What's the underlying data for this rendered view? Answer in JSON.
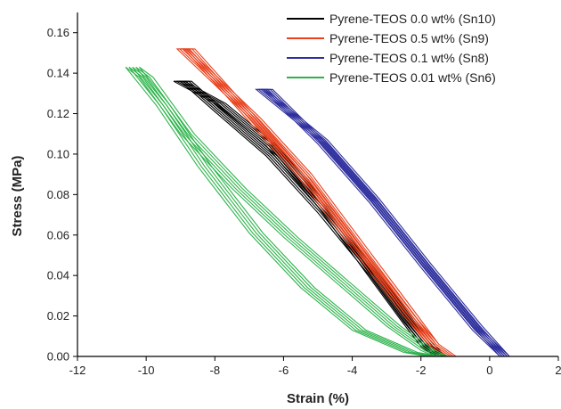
{
  "chart_data": {
    "type": "line",
    "title": "",
    "xlabel": "Strain (%)",
    "ylabel": "Stress (MPa)",
    "xlim": [
      -12,
      2
    ],
    "ylim": [
      0,
      0.17
    ],
    "xticks": [
      -12,
      -10,
      -8,
      -6,
      -4,
      -2,
      0,
      2
    ],
    "yticks": [
      0.0,
      0.02,
      0.04,
      0.06,
      0.08,
      0.1,
      0.12,
      0.14,
      0.16
    ],
    "ytick_labels": [
      "0.00",
      "0.02",
      "0.04",
      "0.06",
      "0.08",
      "0.10",
      "0.12",
      "0.14",
      "0.16"
    ],
    "xtick_labels": [
      "-12",
      "-10",
      "-8",
      "-6",
      "-4",
      "-2",
      "0",
      "2"
    ],
    "grid": false,
    "legend_position": "top-right",
    "series": [
      {
        "name": "Pyrene-TEOS 0.0 wt% (Sn10)",
        "color": "#000000",
        "cycles": 5,
        "cycle_strain_offset": 0.08,
        "loading": [
          [
            -1.6,
            0.0
          ],
          [
            -2.0,
            0.005
          ],
          [
            -2.5,
            0.016
          ],
          [
            -3.5,
            0.039
          ],
          [
            -5.0,
            0.074
          ],
          [
            -6.5,
            0.104
          ],
          [
            -8.0,
            0.125
          ],
          [
            -9.2,
            0.136
          ]
        ],
        "unloading": [
          [
            -9.0,
            0.136
          ],
          [
            -8.0,
            0.121
          ],
          [
            -6.5,
            0.099
          ],
          [
            -5.0,
            0.071
          ],
          [
            -3.5,
            0.04
          ],
          [
            -2.5,
            0.017
          ],
          [
            -2.0,
            0.007
          ],
          [
            -1.6,
            0.0
          ]
        ]
      },
      {
        "name": "Pyrene-TEOS 0.5 wt% (Sn9)",
        "color": "#e8411c",
        "cycles": 5,
        "cycle_strain_offset": 0.08,
        "loading": [
          [
            -1.3,
            0.0
          ],
          [
            -1.8,
            0.006
          ],
          [
            -2.5,
            0.022
          ],
          [
            -4.0,
            0.056
          ],
          [
            -5.5,
            0.09
          ],
          [
            -7.0,
            0.118
          ],
          [
            -9.1,
            0.152
          ]
        ],
        "unloading": [
          [
            -8.9,
            0.152
          ],
          [
            -7.0,
            0.116
          ],
          [
            -5.5,
            0.087
          ],
          [
            -4.0,
            0.053
          ],
          [
            -2.5,
            0.02
          ],
          [
            -1.8,
            0.006
          ],
          [
            -1.3,
            0.0
          ]
        ]
      },
      {
        "name": "Pyrene-TEOS 0.1 wt% (Sn8)",
        "color": "#2e2f9e",
        "cycles": 5,
        "cycle_strain_offset": 0.07,
        "loading": [
          [
            0.3,
            0.0
          ],
          [
            -0.5,
            0.015
          ],
          [
            -2.0,
            0.046
          ],
          [
            -3.5,
            0.078
          ],
          [
            -5.0,
            0.107
          ],
          [
            -6.8,
            0.132
          ]
        ],
        "unloading": [
          [
            -6.6,
            0.132
          ],
          [
            -5.0,
            0.105
          ],
          [
            -3.5,
            0.076
          ],
          [
            -2.0,
            0.044
          ],
          [
            -0.5,
            0.013
          ],
          [
            0.3,
            0.0
          ]
        ]
      },
      {
        "name": "Pyrene-TEOS 0.01 wt% (Sn6)",
        "color": "#2db34a",
        "cycles": 5,
        "cycle_strain_offset": 0.1,
        "loading": [
          [
            -1.8,
            0.0
          ],
          [
            -2.5,
            0.002
          ],
          [
            -4.0,
            0.013
          ],
          [
            -5.5,
            0.034
          ],
          [
            -7.0,
            0.061
          ],
          [
            -8.5,
            0.094
          ],
          [
            -9.7,
            0.124
          ],
          [
            -10.6,
            0.143
          ]
        ],
        "unloading": [
          [
            -10.6,
            0.143
          ],
          [
            -10.2,
            0.138
          ],
          [
            -9.0,
            0.11
          ],
          [
            -7.5,
            0.083
          ],
          [
            -6.0,
            0.059
          ],
          [
            -4.5,
            0.037
          ],
          [
            -3.0,
            0.015
          ],
          [
            -2.0,
            0.003
          ],
          [
            -1.6,
            0.0
          ]
        ]
      }
    ]
  }
}
